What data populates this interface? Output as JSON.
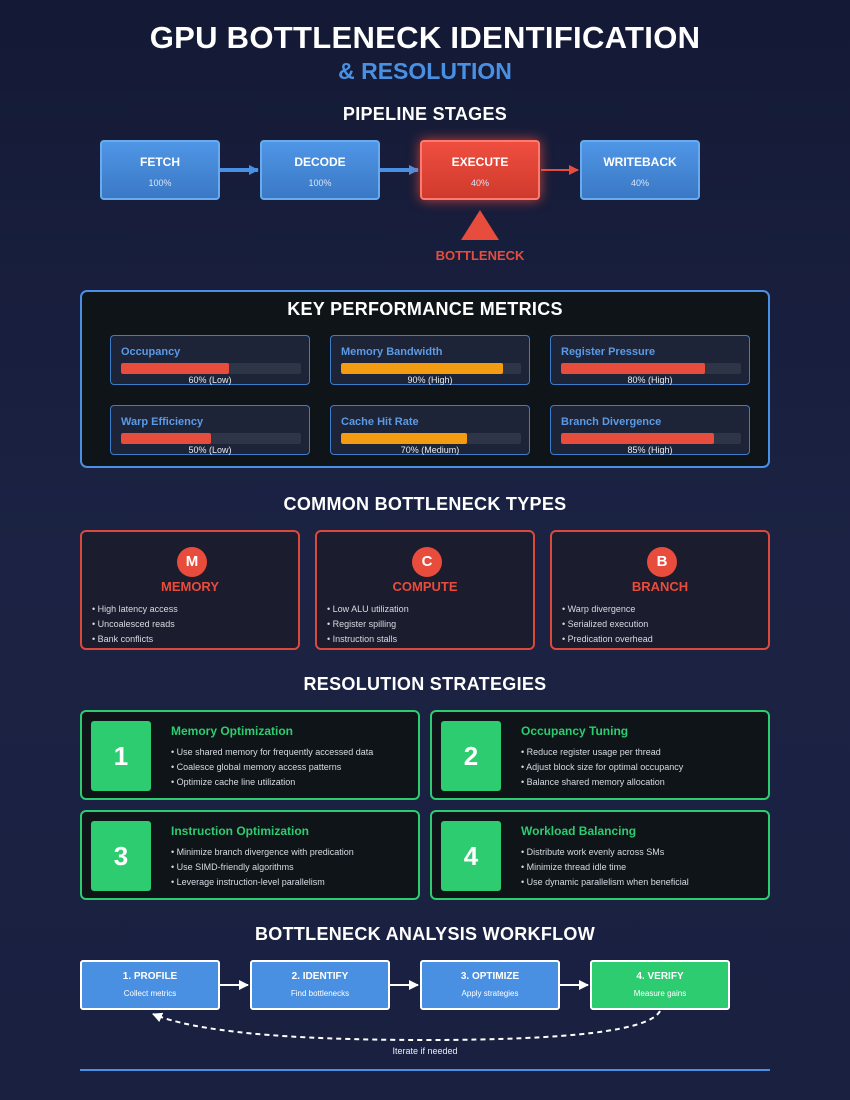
{
  "header": {
    "title": "GPU BOTTLENECK IDENTIFICATION",
    "subtitle": "& RESOLUTION"
  },
  "pipeline": {
    "title": "PIPELINE STAGES",
    "stages": [
      {
        "name": "FETCH",
        "value": "100%"
      },
      {
        "name": "DECODE",
        "value": "100%"
      },
      {
        "name": "EXECUTE",
        "value": "40%"
      },
      {
        "name": "WRITEBACK",
        "value": "40%"
      }
    ],
    "bottleneck_label": "BOTTLENECK",
    "normal_color": "#4a90e2",
    "bottleneck_color": "#e74c3c"
  },
  "metrics": {
    "title": "KEY PERFORMANCE METRICS",
    "items": [
      {
        "label": "Occupancy",
        "percent": 60,
        "value": "60% (Low)",
        "color": "#e74c3c"
      },
      {
        "label": "Memory Bandwidth",
        "percent": 90,
        "value": "90% (High)",
        "color": "#f39c12"
      },
      {
        "label": "Register Pressure",
        "percent": 80,
        "value": "80% (High)",
        "color": "#e74c3c"
      },
      {
        "label": "Warp Efficiency",
        "percent": 50,
        "value": "50% (Low)",
        "color": "#e74c3c"
      },
      {
        "label": "Cache Hit Rate",
        "percent": 70,
        "value": "70% (Medium)",
        "color": "#f39c12"
      },
      {
        "label": "Branch Divergence",
        "percent": 85,
        "value": "85% (High)",
        "color": "#e74c3c"
      }
    ]
  },
  "types": {
    "title": "COMMON BOTTLENECK TYPES",
    "items": [
      {
        "letter": "M",
        "name": "MEMORY",
        "bullets": [
          "• High latency access",
          "• Uncoalesced reads",
          "• Bank conflicts"
        ]
      },
      {
        "letter": "C",
        "name": "COMPUTE",
        "bullets": [
          "• Low ALU utilization",
          "• Register spilling",
          "• Instruction stalls"
        ]
      },
      {
        "letter": "B",
        "name": "BRANCH",
        "bullets": [
          "• Warp divergence",
          "• Serialized execution",
          "• Predication overhead"
        ]
      }
    ]
  },
  "strategies": {
    "title": "RESOLUTION STRATEGIES",
    "items": [
      {
        "number": "1",
        "title": "Memory Optimization",
        "bullets": [
          "• Use shared memory for frequently accessed data",
          "• Coalesce global memory access patterns",
          "• Optimize cache line utilization"
        ]
      },
      {
        "number": "2",
        "title": "Occupancy Tuning",
        "bullets": [
          "• Reduce register usage per thread",
          "• Adjust block size for optimal occupancy",
          "• Balance shared memory allocation"
        ]
      },
      {
        "number": "3",
        "title": "Instruction Optimization",
        "bullets": [
          "• Minimize branch divergence with predication",
          "• Use SIMD-friendly algorithms",
          "• Leverage instruction-level parallelism"
        ]
      },
      {
        "number": "4",
        "title": "Workload Balancing",
        "bullets": [
          "• Distribute work evenly across SMs",
          "• Minimize thread idle time",
          "• Use dynamic parallelism when beneficial"
        ]
      }
    ]
  },
  "workflow": {
    "title": "BOTTLENECK ANALYSIS WORKFLOW",
    "steps": [
      {
        "title": "1. PROFILE",
        "subtitle": "Collect metrics"
      },
      {
        "title": "2. IDENTIFY",
        "subtitle": "Find bottlenecks"
      },
      {
        "title": "3. OPTIMIZE",
        "subtitle": "Apply strategies"
      },
      {
        "title": "4. VERIFY",
        "subtitle": "Measure gains"
      }
    ],
    "loop_label": "Iterate if needed"
  }
}
